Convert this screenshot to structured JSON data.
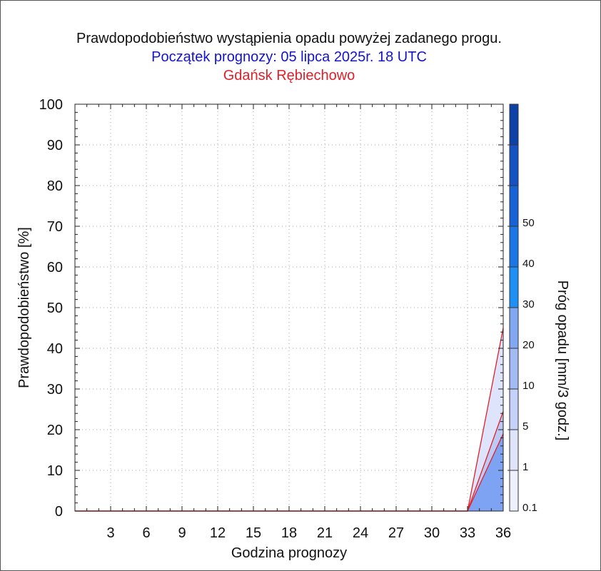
{
  "header": {
    "title": "Prawdopodobieństwo wystąpienia opadu powyżej zadanego progu.",
    "subtitle": "Początek prognozy: 05 lipca 2025r. 18 UTC",
    "location": "Gdańsk Rębiechowo"
  },
  "chart_data": {
    "type": "area",
    "xlabel": "Godzina prognozy",
    "ylabel": "Prawdopodobieństwo [%]",
    "xlim": [
      0,
      36
    ],
    "ylim": [
      0,
      100
    ],
    "x_ticks": [
      3,
      6,
      9,
      12,
      15,
      18,
      21,
      24,
      27,
      30,
      33,
      36
    ],
    "y_ticks": [
      0,
      10,
      20,
      30,
      40,
      50,
      60,
      70,
      80,
      90,
      100
    ],
    "grid": true,
    "x": [
      0,
      33,
      36
    ],
    "series": [
      {
        "threshold": 0.1,
        "values": [
          0,
          0,
          45
        ],
        "fill": "#dde4fb"
      },
      {
        "threshold": 1,
        "values": [
          0,
          0,
          24.5
        ],
        "fill": "#bccbf6"
      },
      {
        "threshold": 5,
        "values": [
          0,
          0,
          19
        ],
        "fill": "#7fa3f3"
      }
    ],
    "line_color": "#e0202a",
    "colorbar": {
      "label": "Próg opadu [mm/3 godz.]",
      "labels": [
        "0.1",
        "1",
        "5",
        "10",
        "20",
        "30",
        "40",
        "50"
      ],
      "colors": [
        "#eef0fd",
        "#dfe4fb",
        "#c5d1f8",
        "#a3bbf5",
        "#82a7f3",
        "#1e8ff5",
        "#1b77e8",
        "#1862d8",
        "#1552c4",
        "#0f42a8"
      ]
    }
  }
}
